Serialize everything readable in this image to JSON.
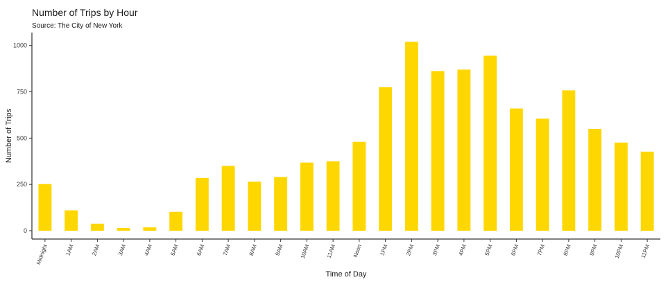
{
  "chart_data": {
    "type": "bar",
    "title": "Number of Trips by Hour",
    "subtitle": "Source: The City of New York",
    "xlabel": "Time of Day",
    "ylabel": "Number of Trips",
    "categories": [
      "Midnight",
      "1AM",
      "2AM",
      "3AM",
      "4AM",
      "5AM",
      "6AM",
      "7AM",
      "8AM",
      "9AM",
      "10AM",
      "11AM",
      "Noon",
      "1PM",
      "2PM",
      "3PM",
      "4PM",
      "5PM",
      "6PM",
      "7PM",
      "8PM",
      "9PM",
      "10PM",
      "11PM"
    ],
    "values": [
      252,
      110,
      38,
      15,
      18,
      102,
      285,
      350,
      265,
      290,
      368,
      375,
      480,
      775,
      1020,
      862,
      870,
      945,
      660,
      605,
      758,
      550,
      476,
      427
    ],
    "ylim": [
      -45,
      1070
    ],
    "yticks": [
      0,
      250,
      500,
      750,
      1000
    ],
    "grid": false,
    "bar_color": "#FFD700"
  }
}
